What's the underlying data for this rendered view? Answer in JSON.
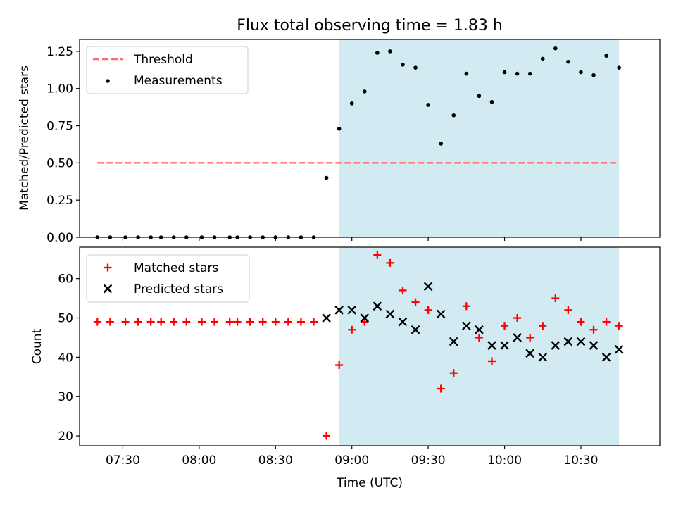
{
  "colors": {
    "shade": "#add8e6",
    "threshold": "#ff6b6b",
    "matched": "#ff0000",
    "predicted": "#000000",
    "measurement": "#000000"
  },
  "chart_data": [
    {
      "type": "scatter",
      "title": "Flux total observing time = 1.83 h",
      "xlabel": "",
      "ylabel": "Matched/Predicted stars",
      "ylim": [
        0,
        1.33
      ],
      "yticks": [
        0.0,
        0.25,
        0.5,
        0.75,
        1.0,
        1.25
      ],
      "ytick_labels": [
        "0.00",
        "0.25",
        "0.50",
        "0.75",
        "1.00",
        "1.25"
      ],
      "xlim_minutes": [
        433,
        661
      ],
      "shaded_interval": [
        "08:55",
        "10:45"
      ],
      "legend": {
        "placement": "upper left",
        "entries": [
          "Threshold",
          "Measurements"
        ]
      },
      "series": [
        {
          "name": "Threshold",
          "style": "dashed-line",
          "x": [
            "07:20",
            "10:45"
          ],
          "y": [
            0.5,
            0.5
          ]
        },
        {
          "name": "Measurements",
          "style": "dot",
          "x": [
            "07:20",
            "07:25",
            "07:31",
            "07:36",
            "07:41",
            "07:45",
            "07:50",
            "07:55",
            "08:01",
            "08:06",
            "08:12",
            "08:15",
            "08:20",
            "08:25",
            "08:30",
            "08:35",
            "08:40",
            "08:45",
            "08:50",
            "08:55",
            "09:00",
            "09:05",
            "09:10",
            "09:15",
            "09:20",
            "09:25",
            "09:30",
            "09:35",
            "09:40",
            "09:45",
            "09:50",
            "09:55",
            "10:00",
            "10:05",
            "10:10",
            "10:15",
            "10:20",
            "10:25",
            "10:30",
            "10:35",
            "10:40",
            "10:45"
          ],
          "y": [
            0,
            0,
            0,
            0,
            0,
            0,
            0,
            0,
            0,
            0,
            0,
            0,
            0,
            0,
            0,
            0,
            0,
            0,
            0.4,
            0.73,
            0.9,
            0.98,
            1.24,
            1.25,
            1.16,
            1.14,
            0.89,
            0.63,
            0.82,
            1.1,
            0.95,
            0.91,
            1.11,
            1.1,
            1.1,
            1.2,
            1.27,
            1.18,
            1.11,
            1.09,
            1.22,
            1.14
          ]
        }
      ]
    },
    {
      "type": "scatter",
      "title": "",
      "xlabel": "Time (UTC)",
      "ylabel": "Count",
      "ylim": [
        17.5,
        68
      ],
      "yticks": [
        20,
        30,
        40,
        50,
        60
      ],
      "xticks": [
        "07:30",
        "08:00",
        "08:30",
        "09:00",
        "09:30",
        "10:00",
        "10:30"
      ],
      "xlim_minutes": [
        433,
        661
      ],
      "shaded_interval": [
        "08:55",
        "10:45"
      ],
      "legend": {
        "placement": "upper left",
        "entries": [
          "Matched stars",
          "Predicted stars"
        ]
      },
      "series": [
        {
          "name": "Matched stars",
          "style": "plus",
          "x": [
            "07:20",
            "07:25",
            "07:31",
            "07:36",
            "07:41",
            "07:45",
            "07:50",
            "07:55",
            "08:01",
            "08:06",
            "08:12",
            "08:15",
            "08:20",
            "08:25",
            "08:30",
            "08:35",
            "08:40",
            "08:45",
            "08:50",
            "08:55",
            "09:00",
            "09:05",
            "09:10",
            "09:15",
            "09:20",
            "09:25",
            "09:30",
            "09:35",
            "09:40",
            "09:45",
            "09:50",
            "09:55",
            "10:00",
            "10:05",
            "10:10",
            "10:15",
            "10:20",
            "10:25",
            "10:30",
            "10:35",
            "10:40",
            "10:45"
          ],
          "y": [
            49,
            49,
            49,
            49,
            49,
            49,
            49,
            49,
            49,
            49,
            49,
            49,
            49,
            49,
            49,
            49,
            49,
            49,
            20,
            38,
            47,
            49,
            66,
            64,
            57,
            54,
            52,
            32,
            36,
            53,
            45,
            39,
            48,
            50,
            45,
            48,
            55,
            52,
            49,
            47,
            49,
            48
          ]
        },
        {
          "name": "Predicted stars",
          "style": "x",
          "x": [
            "08:50",
            "08:55",
            "09:00",
            "09:05",
            "09:10",
            "09:15",
            "09:20",
            "09:25",
            "09:30",
            "09:35",
            "09:40",
            "09:45",
            "09:50",
            "09:55",
            "10:00",
            "10:05",
            "10:10",
            "10:15",
            "10:20",
            "10:25",
            "10:30",
            "10:35",
            "10:40",
            "10:45"
          ],
          "y": [
            50,
            52,
            52,
            50,
            53,
            51,
            49,
            47,
            58,
            51,
            44,
            48,
            47,
            43,
            43,
            45,
            41,
            40,
            43,
            44,
            44,
            43,
            40,
            42
          ]
        }
      ]
    }
  ]
}
